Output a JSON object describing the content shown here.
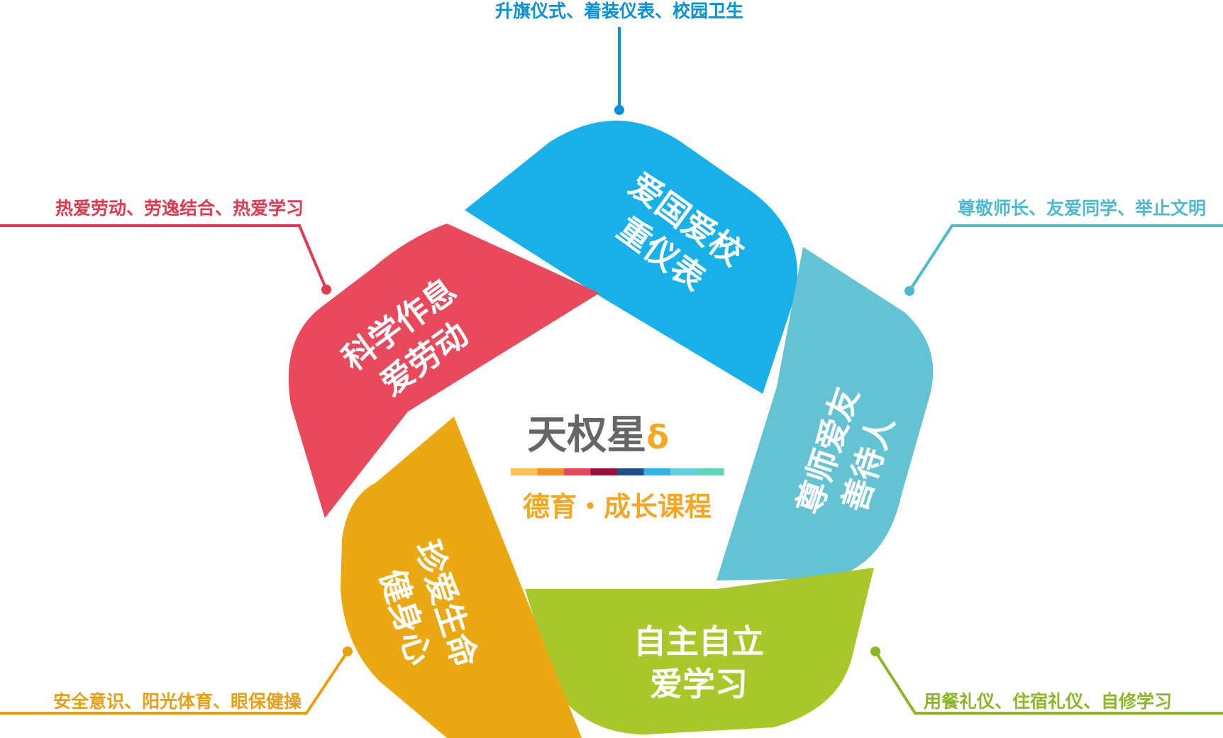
{
  "center": {
    "title": "天权星",
    "title_symbol": "δ",
    "subtitle": "德育・成长课程",
    "title_color": "#666666",
    "symbol_color": "#f5a623",
    "subtitle_color": "#f5a623",
    "color_bar": [
      "#ffc15c",
      "#f5912c",
      "#e7475c",
      "#93133f",
      "#1d4e8a",
      "#3aaee6",
      "#62d0e0",
      "#5cd6b6"
    ]
  },
  "segments": [
    {
      "id": "blue",
      "line1": "爱国爱校",
      "line2": "重仪表",
      "color": "#18b0e8",
      "note": "升旗仪式、着装仪表、校园卫生",
      "note_color": "#0b90d6"
    },
    {
      "id": "teal",
      "line1": "尊师爱友",
      "line2": "善待人",
      "color": "#64c3d2",
      "note": "尊敬师长、友爱同学、举止文明",
      "note_color": "#4dbad0"
    },
    {
      "id": "green",
      "line1": "自主自立",
      "line2": "爱学习",
      "color": "#a8c82a",
      "note": "用餐礼仪、住宿礼仪、自修学习",
      "note_color": "#8cb626"
    },
    {
      "id": "orange",
      "line1": "珍爱生命",
      "line2": "健身心",
      "color": "#eaa913",
      "note": "安全意识、阳光体育、眼保健操",
      "note_color": "#e8a012"
    },
    {
      "id": "red",
      "line1": "科学作息",
      "line2": "爱劳动",
      "color": "#e84a5b",
      "note": "热爱劳动、劳逸结合、热爱学习",
      "note_color": "#e2394f"
    }
  ]
}
